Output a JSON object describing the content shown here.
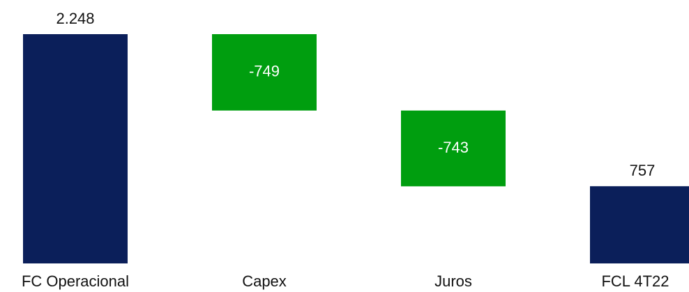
{
  "chart_data": {
    "type": "waterfall",
    "categories": [
      "FC Operacional",
      "Capex",
      "Juros",
      "FCL 4T22"
    ],
    "values": [
      2248,
      -749,
      -743,
      757
    ],
    "value_labels": [
      "2.248",
      "-749",
      "-743",
      "757"
    ],
    "measure": [
      "absolute",
      "relative",
      "relative",
      "total"
    ],
    "colors": [
      "#0b1f5a",
      "#009e0f",
      "#009e0f",
      "#0b1f5a"
    ]
  }
}
